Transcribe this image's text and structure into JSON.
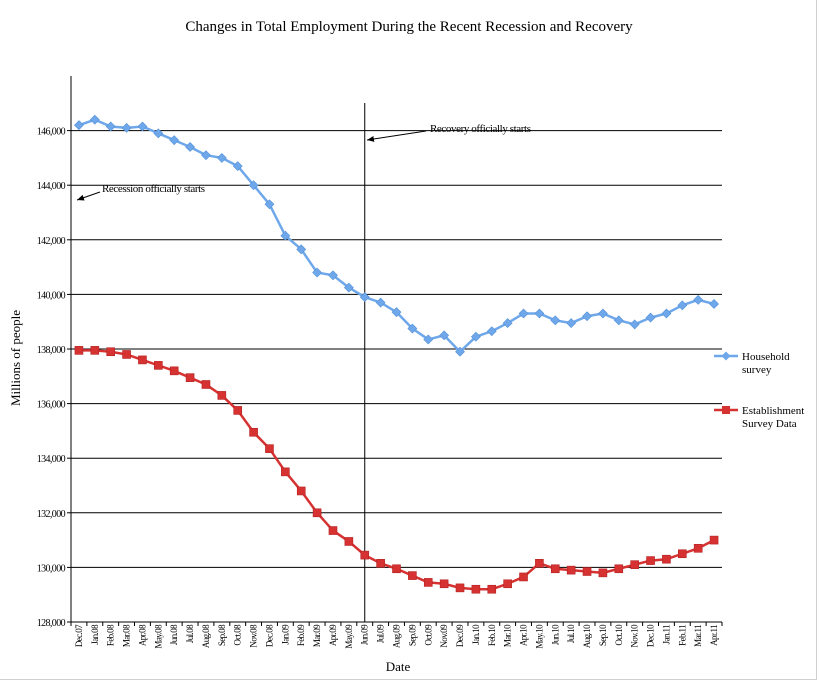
{
  "chart_data": {
    "type": "line",
    "title": "Changes in Total Employment During the Recent Recession and Recovery",
    "xlabel": "Date",
    "ylabel": "Millions of people",
    "ylim": [
      128000,
      148000
    ],
    "yticks": [
      "128,000",
      "130,000",
      "132,000",
      "134,000",
      "136,000",
      "138,000",
      "140,000",
      "142,000",
      "144,000",
      "146,000"
    ],
    "grid": "horizontal",
    "legend_position": "right",
    "categories": [
      "Dec.07",
      "Jan.08",
      "Feb.08",
      "Mar.08",
      "Apr.08",
      "May.08",
      "Jun.08",
      "Jul.08",
      "Aug.08",
      "Sep.08",
      "Oct.08",
      "Nov.08",
      "Dec.08",
      "Jan.09",
      "Feb.09",
      "Mar.09",
      "Apr.09",
      "May.09",
      "Jun.09",
      "Jul.09",
      "Aug.09",
      "Sep.09",
      "Oct.09",
      "Nov.09",
      "Dec.09",
      "Jan.10",
      "Feb.10",
      "Mar.10",
      "Apr.10",
      "May.10",
      "Jun.10",
      "Jul.10",
      "Aug.10",
      "Sep.10",
      "Oct.10",
      "Nov.10",
      "Dec.10",
      "Jan.11",
      "Feb.11",
      "Mar.11",
      "Apr.11"
    ],
    "series": [
      {
        "name": "Household survey",
        "color": "#6fa8ea",
        "marker": "diamond",
        "values": [
          146200,
          146400,
          146150,
          146100,
          146150,
          145900,
          145650,
          145400,
          145100,
          145000,
          144700,
          144000,
          143300,
          142150,
          141650,
          140800,
          140700,
          140250,
          139900,
          139700,
          139350,
          138750,
          138350,
          138500,
          137900,
          138450,
          138650,
          138950,
          139300,
          139300,
          139050,
          138950,
          139200,
          139300,
          139050,
          138900,
          139150,
          139300,
          139600,
          139800,
          139650
        ]
      },
      {
        "name": "Establishment Survey Data",
        "color": "#d63232",
        "marker": "square",
        "values": [
          137950,
          137950,
          137900,
          137800,
          137600,
          137400,
          137200,
          136950,
          136700,
          136300,
          135750,
          134950,
          134350,
          133500,
          132800,
          132000,
          131350,
          130950,
          130450,
          130150,
          129950,
          129700,
          129450,
          129400,
          129250,
          129200,
          129200,
          129400,
          129650,
          130150,
          129950,
          129900,
          129850,
          129800,
          129950,
          130100,
          130250,
          130300,
          130500,
          130700,
          131000
        ]
      }
    ],
    "annotations": [
      {
        "text": "Recession officially starts",
        "category": "Dec.07"
      },
      {
        "text": "Recovery officially starts",
        "category": "Jun.09"
      }
    ]
  }
}
